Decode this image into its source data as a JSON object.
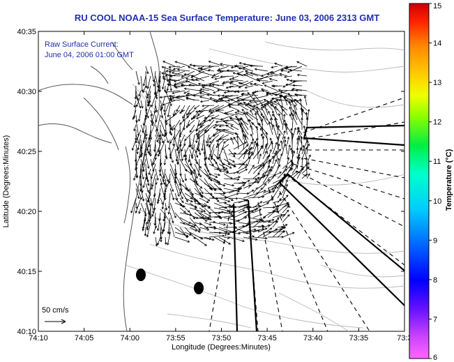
{
  "title": "RU COOL  NOAA-15  Sea Surface Temperature:  June 03, 2006 2313 GMT",
  "annotations": {
    "current_label": "Raw Surface Current:",
    "current_time": "June 04, 2006 01:00 GMT",
    "scale_label": "50 cm/s"
  },
  "axes": {
    "xlabel": "Longitude (Degrees:Minutes)",
    "ylabel": "Latitude (Degrees:Minutes)",
    "xticks": [
      "74:10",
      "74:05",
      "74:00",
      "73:55",
      "73:50",
      "73:45",
      "73:40",
      "73:35",
      "73:3"
    ],
    "yticks": [
      "40:35",
      "40:30",
      "40:25",
      "40:20",
      "40:15",
      "40:10"
    ]
  },
  "colorbar": {
    "label": "Temperature (°C)",
    "ticks": [
      "15",
      "14",
      "13",
      "12",
      "11",
      "10",
      "9",
      "8",
      "7",
      "6"
    ],
    "range": [
      6,
      15
    ]
  },
  "colors": {
    "title": "#1f2fb0",
    "land_contour": "#606060",
    "bathymetry": "#b0b0b0"
  }
}
